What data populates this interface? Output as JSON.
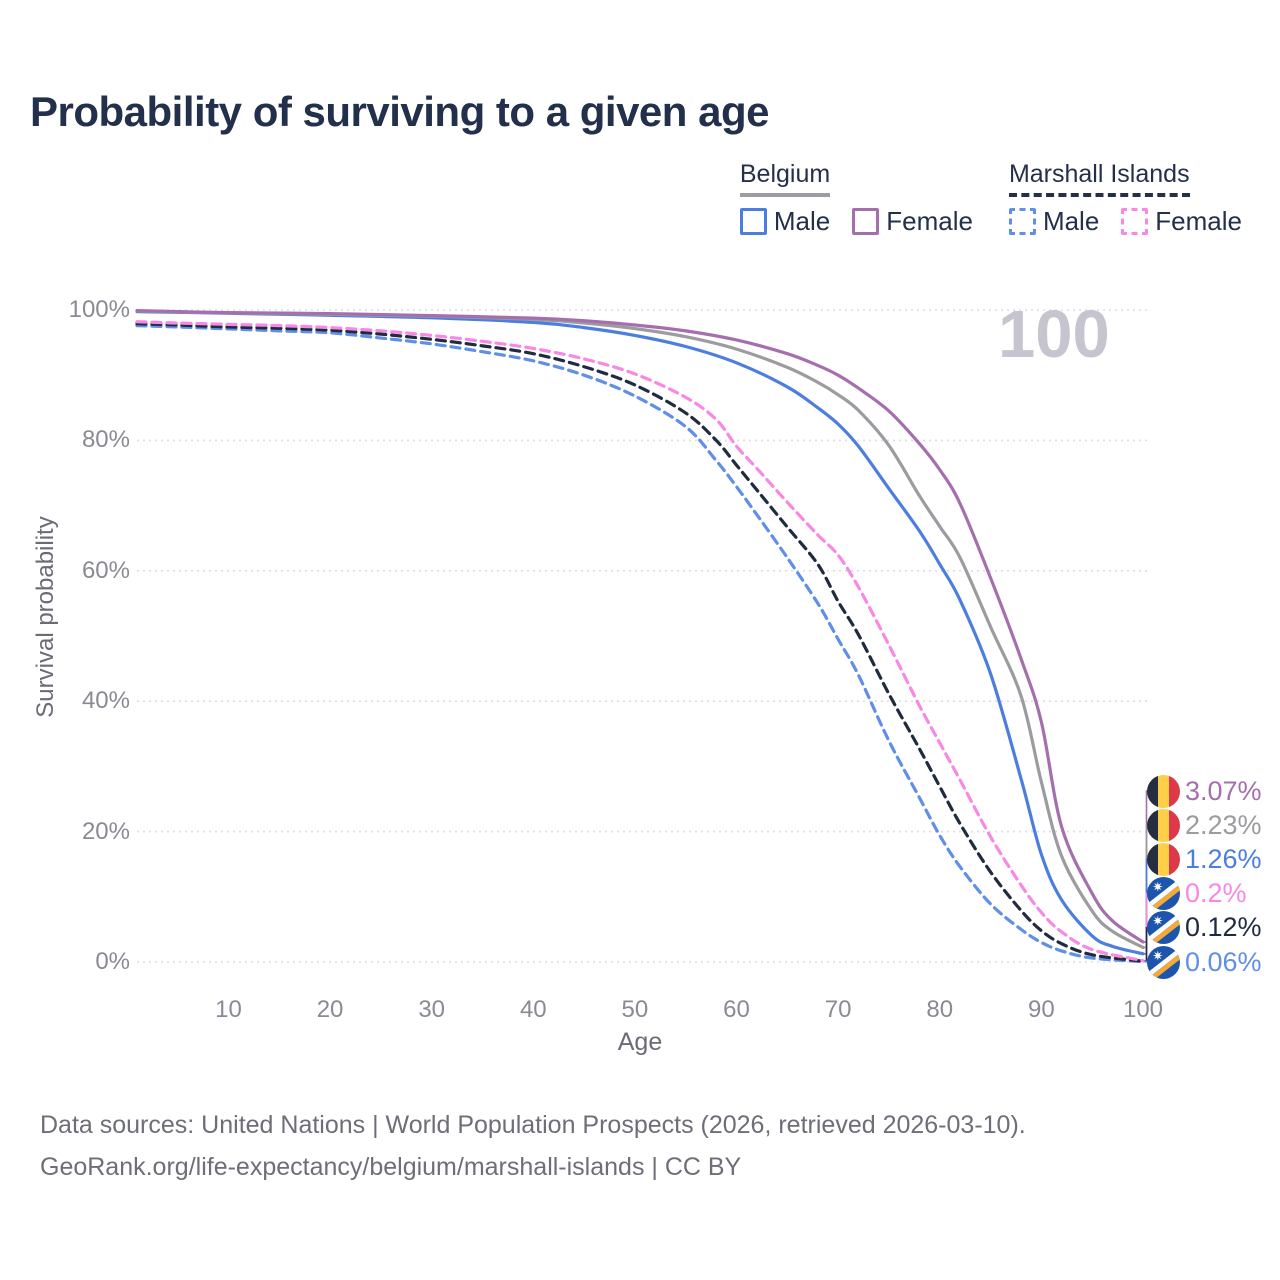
{
  "title": "Probability of surviving to a given age",
  "legend": {
    "groups": [
      {
        "label": "Belgium",
        "underline_style": "solid",
        "underline_color": "#9C9CA1",
        "items": [
          {
            "label": "Male",
            "color": "#4C7EE0",
            "line_style": "solid"
          },
          {
            "label": "Female",
            "color": "#A56FAD",
            "line_style": "solid"
          }
        ]
      },
      {
        "label": "Marshall Islands",
        "underline_style": "dashed",
        "underline_color": "#24304A",
        "items": [
          {
            "label": "Male",
            "color": "#5F8FE8",
            "line_style": "dashed"
          },
          {
            "label": "Female",
            "color": "#F888E4",
            "line_style": "dashed"
          }
        ]
      }
    ]
  },
  "axes": {
    "y_title": "Survival probability",
    "x_title": "Age",
    "y_ticks": [
      "100%",
      "80%",
      "60%",
      "40%",
      "20%",
      "0%"
    ],
    "y_tick_values": [
      100,
      80,
      60,
      40,
      20,
      0
    ],
    "x_ticks": [
      "10",
      "20",
      "30",
      "40",
      "50",
      "60",
      "70",
      "80",
      "90",
      "100"
    ],
    "x_tick_values": [
      10,
      20,
      30,
      40,
      50,
      60,
      70,
      80,
      90,
      100
    ]
  },
  "hover_age_watermark": "100",
  "end_labels": [
    {
      "value": "3.07%",
      "series": "Belgium Female",
      "flag": "belgium"
    },
    {
      "value": "2.23%",
      "series": "Belgium (both sexes)",
      "flag": "belgium"
    },
    {
      "value": "1.26%",
      "series": "Belgium Male",
      "flag": "belgium"
    },
    {
      "value": "0.2%",
      "series": "Marshall Islands Female",
      "flag": "marshall"
    },
    {
      "value": "0.12%",
      "series": "Marshall Islands (both sexes)",
      "flag": "marshall"
    },
    {
      "value": "0.06%",
      "series": "Marshall Islands Male",
      "flag": "marshall"
    }
  ],
  "flags": {
    "belgium": {
      "black": "#262E40",
      "yellow": "#FFCF48",
      "red": "#DD3948"
    },
    "marshall": {
      "blue": "#1D55AC",
      "white": "#FFFFFF",
      "orange": "#F3A93C"
    }
  },
  "source": {
    "line1": "Data sources: United Nations | World Population Prospects (2026, retrieved 2026-03-10).",
    "line2": "GeoRank.org/life-expectancy/belgium/marshall-islands | CC BY"
  },
  "chart_data": {
    "type": "line",
    "title": "Probability of surviving to a given age",
    "xlabel": "Age",
    "ylabel": "Survival probability",
    "x_range": [
      1,
      100
    ],
    "y_range_pct": [
      0,
      100
    ],
    "grid": "horizontal",
    "legend_position": "top-right",
    "hovered_age": 100,
    "series": [
      {
        "name": "Marshall Islands Male",
        "country": "Marshall Islands",
        "sex": "Male",
        "color": "#5F8FE8",
        "dash": "dashed",
        "end_value_pct": 0.06,
        "points": [
          [
            1,
            97.6
          ],
          [
            5,
            97.4
          ],
          [
            10,
            97.1
          ],
          [
            15,
            96.8
          ],
          [
            20,
            96.5
          ],
          [
            25,
            95.7
          ],
          [
            30,
            94.8
          ],
          [
            35,
            93.6
          ],
          [
            40,
            92.2
          ],
          [
            45,
            90.0
          ],
          [
            50,
            86.8
          ],
          [
            55,
            82.1
          ],
          [
            58,
            76.9
          ],
          [
            60,
            72.9
          ],
          [
            62,
            68.6
          ],
          [
            65,
            62.0
          ],
          [
            68,
            55.0
          ],
          [
            70,
            49.5
          ],
          [
            72,
            44.0
          ],
          [
            75,
            33.9
          ],
          [
            78,
            25.2
          ],
          [
            80,
            19.4
          ],
          [
            82,
            14.6
          ],
          [
            85,
            8.9
          ],
          [
            88,
            5.0
          ],
          [
            90,
            3.0
          ],
          [
            92,
            1.7
          ],
          [
            95,
            0.6
          ],
          [
            100,
            0.06
          ]
        ]
      },
      {
        "name": "Marshall Islands (both sexes)",
        "country": "Marshall Islands",
        "sex": "Both",
        "color": "#1F2B3E",
        "dash": "dashed",
        "end_value_pct": 0.12,
        "points": [
          [
            1,
            97.9
          ],
          [
            5,
            97.7
          ],
          [
            10,
            97.4
          ],
          [
            15,
            97.2
          ],
          [
            20,
            96.9
          ],
          [
            25,
            96.3
          ],
          [
            30,
            95.5
          ],
          [
            35,
            94.5
          ],
          [
            40,
            93.3
          ],
          [
            45,
            91.3
          ],
          [
            50,
            88.5
          ],
          [
            55,
            84.2
          ],
          [
            58,
            80.0
          ],
          [
            60,
            76.2
          ],
          [
            62,
            72.4
          ],
          [
            65,
            66.7
          ],
          [
            68,
            61.0
          ],
          [
            70,
            55.3
          ],
          [
            72,
            50.2
          ],
          [
            75,
            41.1
          ],
          [
            78,
            32.7
          ],
          [
            80,
            26.9
          ],
          [
            82,
            21.2
          ],
          [
            85,
            13.8
          ],
          [
            88,
            7.9
          ],
          [
            90,
            4.8
          ],
          [
            92,
            2.8
          ],
          [
            95,
            1.1
          ],
          [
            100,
            0.12
          ]
        ]
      },
      {
        "name": "Marshall Islands Female",
        "country": "Marshall Islands",
        "sex": "Female",
        "color": "#F888E4",
        "dash": "dashed",
        "end_value_pct": 0.2,
        "points": [
          [
            1,
            98.2
          ],
          [
            5,
            98.0
          ],
          [
            10,
            97.8
          ],
          [
            15,
            97.6
          ],
          [
            20,
            97.3
          ],
          [
            25,
            96.8
          ],
          [
            30,
            96.1
          ],
          [
            35,
            95.2
          ],
          [
            40,
            94.1
          ],
          [
            45,
            92.5
          ],
          [
            50,
            90.2
          ],
          [
            55,
            86.6
          ],
          [
            58,
            83.2
          ],
          [
            60,
            79.1
          ],
          [
            62,
            75.7
          ],
          [
            65,
            70.5
          ],
          [
            68,
            65.5
          ],
          [
            70,
            62.4
          ],
          [
            72,
            57.5
          ],
          [
            75,
            48.6
          ],
          [
            78,
            39.3
          ],
          [
            80,
            33.6
          ],
          [
            82,
            27.9
          ],
          [
            85,
            19.2
          ],
          [
            88,
            11.8
          ],
          [
            90,
            7.6
          ],
          [
            92,
            4.6
          ],
          [
            95,
            1.9
          ],
          [
            100,
            0.2
          ]
        ]
      },
      {
        "name": "Belgium Male",
        "country": "Belgium",
        "sex": "Male",
        "color": "#4C7EE0",
        "dash": "solid",
        "end_value_pct": 1.26,
        "points": [
          [
            1,
            99.75
          ],
          [
            10,
            99.5
          ],
          [
            20,
            99.2
          ],
          [
            30,
            98.8
          ],
          [
            40,
            98.1
          ],
          [
            45,
            97.3
          ],
          [
            50,
            96.1
          ],
          [
            55,
            94.4
          ],
          [
            60,
            91.9
          ],
          [
            65,
            88.2
          ],
          [
            68,
            85.0
          ],
          [
            70,
            82.5
          ],
          [
            72,
            79.1
          ],
          [
            75,
            72.6
          ],
          [
            78,
            66.1
          ],
          [
            80,
            61.0
          ],
          [
            82,
            55.5
          ],
          [
            85,
            44.2
          ],
          [
            88,
            28.1
          ],
          [
            90,
            16.5
          ],
          [
            92,
            9.5
          ],
          [
            95,
            4.0
          ],
          [
            97,
            2.4
          ],
          [
            100,
            1.26
          ]
        ]
      },
      {
        "name": "Belgium (both sexes)",
        "country": "Belgium",
        "sex": "Both",
        "color": "#9B9BA0",
        "dash": "solid",
        "end_value_pct": 2.23,
        "points": [
          [
            1,
            99.85
          ],
          [
            10,
            99.55
          ],
          [
            20,
            99.35
          ],
          [
            30,
            99.05
          ],
          [
            40,
            98.55
          ],
          [
            45,
            98.0
          ],
          [
            50,
            97.15
          ],
          [
            55,
            95.9
          ],
          [
            60,
            94.0
          ],
          [
            65,
            91.2
          ],
          [
            68,
            88.9
          ],
          [
            70,
            87.0
          ],
          [
            72,
            84.6
          ],
          [
            75,
            79.2
          ],
          [
            78,
            71.5
          ],
          [
            80,
            66.8
          ],
          [
            82,
            62.0
          ],
          [
            85,
            51.4
          ],
          [
            88,
            40.8
          ],
          [
            90,
            27.6
          ],
          [
            92,
            16.2
          ],
          [
            95,
            7.8
          ],
          [
            97,
            4.7
          ],
          [
            100,
            2.23
          ]
        ]
      },
      {
        "name": "Belgium Female",
        "country": "Belgium",
        "sex": "Female",
        "color": "#A56FAD",
        "dash": "solid",
        "end_value_pct": 3.07,
        "points": [
          [
            1,
            99.9
          ],
          [
            10,
            99.6
          ],
          [
            20,
            99.45
          ],
          [
            30,
            99.15
          ],
          [
            40,
            98.75
          ],
          [
            45,
            98.35
          ],
          [
            50,
            97.7
          ],
          [
            55,
            96.8
          ],
          [
            60,
            95.4
          ],
          [
            65,
            93.3
          ],
          [
            68,
            91.5
          ],
          [
            70,
            90.0
          ],
          [
            72,
            88.0
          ],
          [
            75,
            84.5
          ],
          [
            78,
            79.5
          ],
          [
            80,
            75.5
          ],
          [
            82,
            70.3
          ],
          [
            85,
            58.9
          ],
          [
            88,
            46.5
          ],
          [
            90,
            36.8
          ],
          [
            92,
            20.7
          ],
          [
            95,
            10.5
          ],
          [
            97,
            6.3
          ],
          [
            100,
            3.07
          ]
        ]
      }
    ]
  }
}
